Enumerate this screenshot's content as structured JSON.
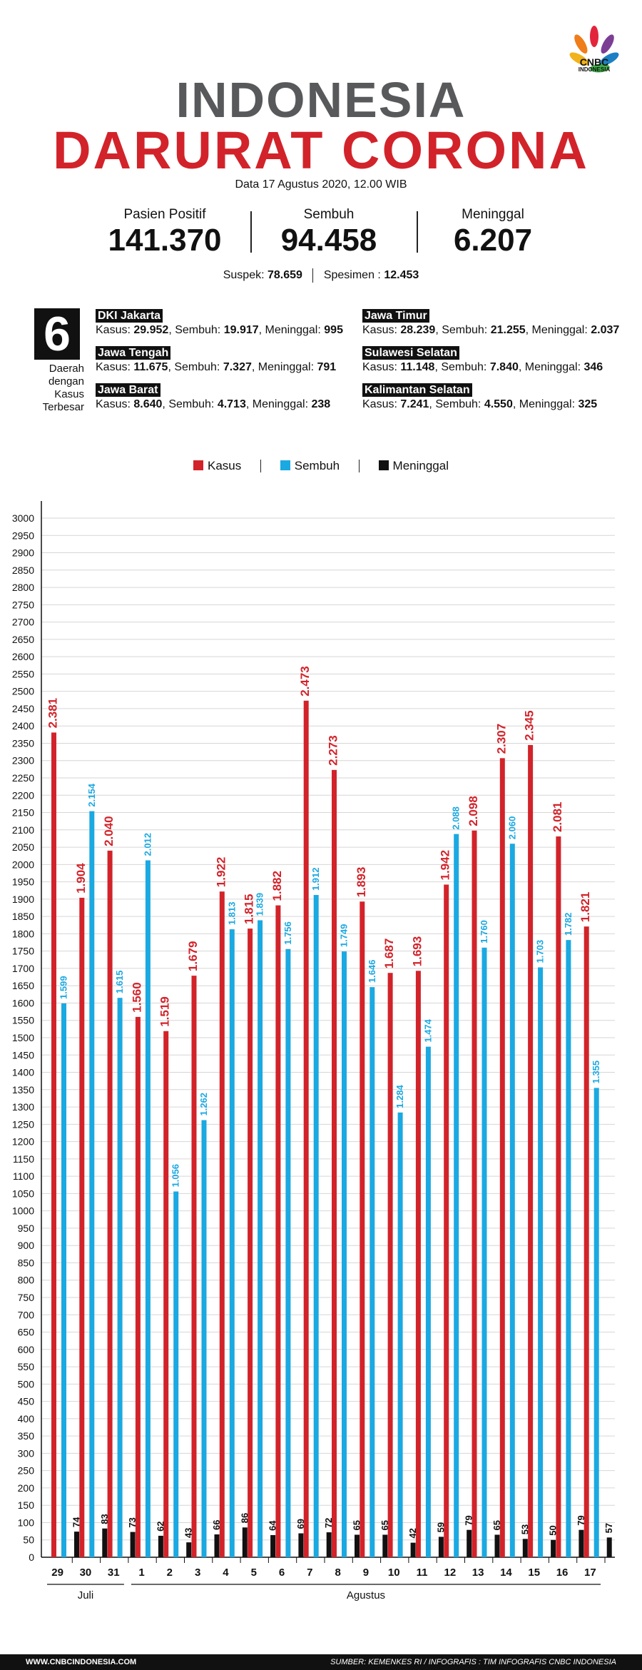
{
  "brand": {
    "logo_line1": "CNBC",
    "logo_line2": "INDONESIA"
  },
  "title": {
    "line1": "INDONESIA",
    "line2": "DARURAT CORONA"
  },
  "date_line": "Data 17 Agustus 2020, 12.00 WIB",
  "stats": [
    {
      "label": "Pasien Positif",
      "value": "141.370"
    },
    {
      "label": "Sembuh",
      "value": "94.458"
    },
    {
      "label": "Meninggal",
      "value": "6.207"
    }
  ],
  "extra": {
    "suspek_label": "Suspek:",
    "suspek_value": "78.659",
    "spesimen_label": "Spesimen :",
    "spesimen_value": "12.453"
  },
  "regions_box": {
    "number": "6",
    "caption": [
      "Daerah",
      "dengan",
      "Kasus",
      "Terbesar"
    ]
  },
  "regions": [
    {
      "name": "DKI Jakarta",
      "kasus": "29.952",
      "sembuh": "19.917",
      "meninggal": "995"
    },
    {
      "name": "Jawa Timur",
      "kasus": "28.239",
      "sembuh": "21.255",
      "meninggal": "2.037"
    },
    {
      "name": "Jawa Tengah",
      "kasus": "11.675",
      "sembuh": "7.327",
      "meninggal": "791"
    },
    {
      "name": "Sulawesi Selatan",
      "kasus": "11.148",
      "sembuh": "7.840",
      "meninggal": "346"
    },
    {
      "name": "Jawa Barat",
      "kasus": "8.640",
      "sembuh": "4.713",
      "meninggal": "238"
    },
    {
      "name": "Kalimantan Selatan",
      "kasus": "7.241",
      "sembuh": "4.550",
      "meninggal": "325"
    }
  ],
  "region_labels": {
    "kasus": "Kasus:",
    "sembuh": "Sembuh:",
    "meninggal": "Meninggal:"
  },
  "colors": {
    "kasus": "#d2232a",
    "sembuh": "#1ba9e1",
    "meninggal": "#111111",
    "title_gray": "#58595b"
  },
  "chart_data": {
    "type": "bar",
    "categories": [
      "29",
      "30",
      "31",
      "1",
      "2",
      "3",
      "4",
      "5",
      "6",
      "7",
      "8",
      "9",
      "10",
      "11",
      "12",
      "13",
      "14",
      "15",
      "16",
      "17"
    ],
    "month_groups": [
      {
        "label": "Juli",
        "from": 0,
        "to": 2
      },
      {
        "label": "Agustus",
        "from": 3,
        "to": 19
      }
    ],
    "series": [
      {
        "name": "Kasus",
        "color": "#d2232a",
        "values": [
          2381,
          1904,
          2040,
          1560,
          1519,
          1679,
          1922,
          1815,
          1882,
          2473,
          2273,
          1893,
          1687,
          1693,
          1942,
          2098,
          2307,
          2345,
          2081,
          1821
        ],
        "labels": [
          "2.381",
          "1.904",
          "2.040",
          "1.560",
          "1.519",
          "1.679",
          "1.922",
          "1.815",
          "1.882",
          "2.473",
          "2.273",
          "1.893",
          "1.687",
          "1.693",
          "1.942",
          "2.098",
          "2.307",
          "2.345",
          "2.081",
          "1.821"
        ]
      },
      {
        "name": "Sembuh",
        "color": "#1ba9e1",
        "values": [
          1599,
          2154,
          1615,
          2012,
          1056,
          1262,
          1813,
          1839,
          1756,
          1912,
          1749,
          1646,
          1284,
          1474,
          2088,
          1760,
          2060,
          1703,
          1782,
          1355
        ],
        "labels": [
          "1.599",
          "2.154",
          "1.615",
          "2.012",
          "1.056",
          "1.262",
          "1.813",
          "1.839",
          "1.756",
          "1.912",
          "1.749",
          "1.646",
          "1.284",
          "1.474",
          "2.088",
          "1.760",
          "2.060",
          "1.703",
          "1.782",
          "1.355"
        ]
      },
      {
        "name": "Meninggal",
        "color": "#111111",
        "values": [
          74,
          83,
          73,
          62,
          43,
          66,
          86,
          64,
          69,
          72,
          65,
          65,
          42,
          59,
          79,
          65,
          53,
          50,
          79,
          57
        ],
        "labels": [
          "74",
          "83",
          "73",
          "62",
          "43",
          "66",
          "86",
          "64",
          "69",
          "72",
          "65",
          "65",
          "42",
          "59",
          "79",
          "65",
          "53",
          "50",
          "79",
          "57"
        ]
      }
    ],
    "yticks": [
      0,
      50,
      100,
      150,
      200,
      250,
      300,
      350,
      400,
      450,
      500,
      550,
      600,
      650,
      700,
      750,
      800,
      850,
      900,
      950,
      1000,
      1050,
      1100,
      1150,
      1200,
      1250,
      1300,
      1350,
      1400,
      1450,
      1500,
      1550,
      1600,
      1650,
      1700,
      1750,
      1800,
      1850,
      1900,
      1950,
      2000,
      2050,
      2100,
      2150,
      2200,
      2250,
      2300,
      2350,
      2400,
      2450,
      2500,
      2550,
      2600,
      2650,
      2700,
      2750,
      2800,
      2850,
      2900,
      2950,
      3000
    ],
    "ylim": [
      0,
      3000
    ],
    "grid": true,
    "legend": "top-center"
  },
  "footer": {
    "left": "WWW.CNBCINDONESIA.COM",
    "right": "SUMBER: KEMENKES RI / INFOGRAFIS : TIM INFOGRAFIS CNBC INDONESIA"
  }
}
